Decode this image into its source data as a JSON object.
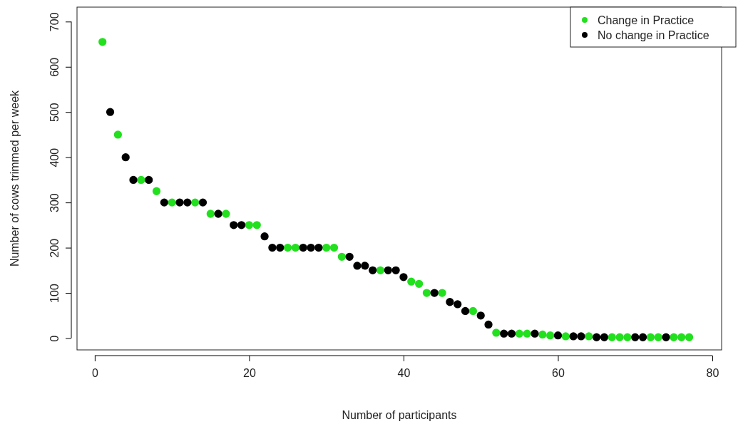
{
  "chart_data": {
    "type": "scatter",
    "xlabel": "Number of participants",
    "ylabel": "Number of cows trimmed per week",
    "xlim": [
      -2.3,
      81.2
    ],
    "ylim": [
      -26,
      732
    ],
    "xticks": [
      0,
      20,
      40,
      60,
      80
    ],
    "yticks": [
      0,
      100,
      200,
      300,
      400,
      500,
      600,
      700
    ],
    "grid": false,
    "legend": "top right",
    "marker": "circle",
    "series": [
      {
        "name": "Change in Practice",
        "color": "#22e01e",
        "x": [
          1,
          3,
          6,
          8,
          10,
          13,
          15,
          17,
          20,
          21,
          25,
          26,
          30,
          31,
          32,
          37,
          41,
          42,
          43,
          45,
          49,
          52,
          55,
          56,
          58,
          59,
          61,
          64,
          67,
          68,
          69,
          72,
          73,
          75,
          76,
          77
        ],
        "values": [
          655,
          450,
          350,
          325,
          300,
          300,
          275,
          275,
          250,
          250,
          200,
          200,
          200,
          200,
          180,
          150,
          125,
          120,
          100,
          100,
          60,
          12,
          10,
          10,
          8,
          6,
          4,
          4,
          2,
          2,
          2,
          2,
          2,
          2,
          2,
          2
        ]
      },
      {
        "name": "No change in Practice",
        "color": "#000000",
        "x": [
          2,
          4,
          5,
          7,
          9,
          11,
          12,
          14,
          16,
          18,
          19,
          22,
          23,
          24,
          27,
          28,
          29,
          33,
          34,
          35,
          36,
          38,
          39,
          40,
          44,
          46,
          47,
          48,
          50,
          51,
          53,
          54,
          57,
          60,
          62,
          63,
          65,
          66,
          70,
          71,
          74
        ],
        "values": [
          500,
          400,
          350,
          350,
          300,
          300,
          300,
          300,
          275,
          250,
          250,
          225,
          200,
          200,
          200,
          200,
          200,
          180,
          160,
          160,
          150,
          150,
          150,
          135,
          100,
          80,
          75,
          60,
          50,
          30,
          10,
          10,
          10,
          6,
          4,
          4,
          2,
          2,
          2,
          2,
          2
        ]
      }
    ]
  }
}
